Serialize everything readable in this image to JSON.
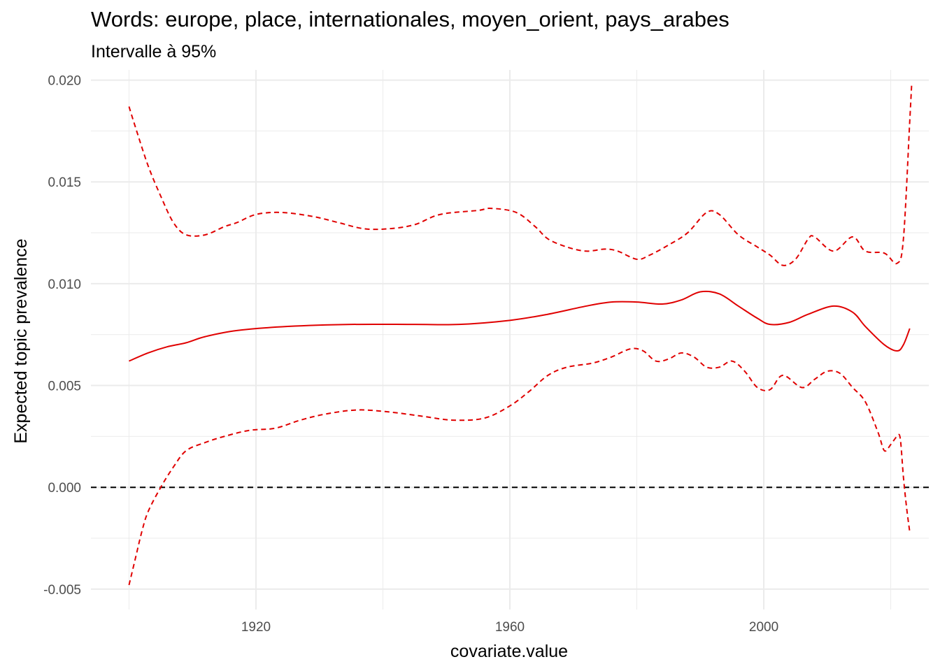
{
  "chart_data": {
    "type": "line",
    "title": "Words: europe, place, internationales, moyen_orient, pays_arabes",
    "subtitle": "Intervalle à 95%",
    "xlabel": "covariate.value",
    "ylabel": "Expected topic prevalence",
    "xlim": [
      1894,
      2026
    ],
    "ylim": [
      -0.006,
      0.0205
    ],
    "x_ticks": [
      1920,
      1960,
      2000
    ],
    "x_tick_labels": [
      "1920",
      "1960",
      "2000"
    ],
    "y_ticks": [
      -0.005,
      0.0,
      0.005,
      0.01,
      0.015,
      0.02
    ],
    "y_tick_labels": [
      "-0.005",
      "0.000",
      "0.005",
      "0.010",
      "0.015",
      "0.020"
    ],
    "grid": true,
    "legend": "none",
    "colors": {
      "series": "#e00000",
      "reference": "#000000",
      "grid": "#ebebeb"
    },
    "reference_line": {
      "y": 0.0,
      "style": "dashed"
    },
    "series": [
      {
        "role": "estimate",
        "style": "solid",
        "points": [
          [
            1900,
            0.0062
          ],
          [
            1903,
            0.0066
          ],
          [
            1906,
            0.0069
          ],
          [
            1909,
            0.0071
          ],
          [
            1912,
            0.0074
          ],
          [
            1917,
            0.0077
          ],
          [
            1925,
            0.0079
          ],
          [
            1935,
            0.008
          ],
          [
            1945,
            0.008
          ],
          [
            1952,
            0.008
          ],
          [
            1960,
            0.0082
          ],
          [
            1966,
            0.0085
          ],
          [
            1972,
            0.0089
          ],
          [
            1976,
            0.0091
          ],
          [
            1980,
            0.0091
          ],
          [
            1984,
            0.009
          ],
          [
            1987,
            0.0092
          ],
          [
            1990,
            0.0096
          ],
          [
            1993,
            0.0095
          ],
          [
            1996,
            0.0089
          ],
          [
            1999,
            0.0083
          ],
          [
            2001,
            0.008
          ],
          [
            2004,
            0.0081
          ],
          [
            2007,
            0.0085
          ],
          [
            2011,
            0.0089
          ],
          [
            2014,
            0.0086
          ],
          [
            2016,
            0.0079
          ],
          [
            2019,
            0.007
          ],
          [
            2021,
            0.0067
          ],
          [
            2022,
            0.007
          ],
          [
            2023,
            0.0078
          ]
        ]
      },
      {
        "role": "upper-bound",
        "style": "dashed",
        "points": [
          [
            1900,
            0.0187
          ],
          [
            1901,
            0.0177
          ],
          [
            1903,
            0.0158
          ],
          [
            1905,
            0.0143
          ],
          [
            1907,
            0.013
          ],
          [
            1909,
            0.0124
          ],
          [
            1912,
            0.0124
          ],
          [
            1915,
            0.0128
          ],
          [
            1917,
            0.013
          ],
          [
            1920,
            0.0134
          ],
          [
            1924,
            0.0135
          ],
          [
            1929,
            0.0133
          ],
          [
            1933,
            0.013
          ],
          [
            1937,
            0.0127
          ],
          [
            1941,
            0.0127
          ],
          [
            1945,
            0.0129
          ],
          [
            1949,
            0.0134
          ],
          [
            1955,
            0.0136
          ],
          [
            1957,
            0.0137
          ],
          [
            1961,
            0.0135
          ],
          [
            1964,
            0.0128
          ],
          [
            1966,
            0.0122
          ],
          [
            1969,
            0.0118
          ],
          [
            1972,
            0.0116
          ],
          [
            1975,
            0.0117
          ],
          [
            1977,
            0.0116
          ],
          [
            1980,
            0.0112
          ],
          [
            1982,
            0.0114
          ],
          [
            1985,
            0.0119
          ],
          [
            1988,
            0.0125
          ],
          [
            1991,
            0.0135
          ],
          [
            1993,
            0.0134
          ],
          [
            1996,
            0.0124
          ],
          [
            1999,
            0.0118
          ],
          [
            2001,
            0.0114
          ],
          [
            2003,
            0.0109
          ],
          [
            2005,
            0.0112
          ],
          [
            2007,
            0.0122
          ],
          [
            2008,
            0.0123
          ],
          [
            2011,
            0.0116
          ],
          [
            2014,
            0.0123
          ],
          [
            2016,
            0.0116
          ],
          [
            2019,
            0.0115
          ],
          [
            2021,
            0.011
          ],
          [
            2022,
            0.0122
          ],
          [
            2023,
            0.018
          ],
          [
            2023.3,
            0.0198
          ]
        ]
      },
      {
        "role": "lower-bound",
        "style": "dashed",
        "points": [
          [
            1900,
            -0.0048
          ],
          [
            1901,
            -0.0035
          ],
          [
            1902,
            -0.0022
          ],
          [
            1903,
            -0.0012
          ],
          [
            1905,
            0.0
          ],
          [
            1907,
            0.001
          ],
          [
            1909,
            0.0018
          ],
          [
            1912,
            0.0022
          ],
          [
            1915,
            0.0025
          ],
          [
            1919,
            0.0028
          ],
          [
            1923,
            0.0029
          ],
          [
            1927,
            0.0033
          ],
          [
            1931,
            0.0036
          ],
          [
            1936,
            0.0038
          ],
          [
            1941,
            0.0037
          ],
          [
            1946,
            0.0035
          ],
          [
            1951,
            0.0033
          ],
          [
            1956,
            0.0034
          ],
          [
            1960,
            0.004
          ],
          [
            1963,
            0.0047
          ],
          [
            1966,
            0.0055
          ],
          [
            1969,
            0.0059
          ],
          [
            1973,
            0.0061
          ],
          [
            1976,
            0.0064
          ],
          [
            1979,
            0.0068
          ],
          [
            1981,
            0.0067
          ],
          [
            1983,
            0.0062
          ],
          [
            1985,
            0.0063
          ],
          [
            1987,
            0.0066
          ],
          [
            1989,
            0.0064
          ],
          [
            1991,
            0.0059
          ],
          [
            1993,
            0.0059
          ],
          [
            1995,
            0.0062
          ],
          [
            1997,
            0.0057
          ],
          [
            1999,
            0.0049
          ],
          [
            2001,
            0.0048
          ],
          [
            2003,
            0.0055
          ],
          [
            2006,
            0.0049
          ],
          [
            2008,
            0.0053
          ],
          [
            2010,
            0.0057
          ],
          [
            2012,
            0.0056
          ],
          [
            2014,
            0.0049
          ],
          [
            2016,
            0.0042
          ],
          [
            2018,
            0.0027
          ],
          [
            2019,
            0.0018
          ],
          [
            2020,
            0.0021
          ],
          [
            2021,
            0.0025
          ],
          [
            2021.5,
            0.0024
          ],
          [
            2022,
            0.0005
          ],
          [
            2022.5,
            -0.001
          ],
          [
            2023,
            -0.0022
          ]
        ]
      }
    ]
  }
}
